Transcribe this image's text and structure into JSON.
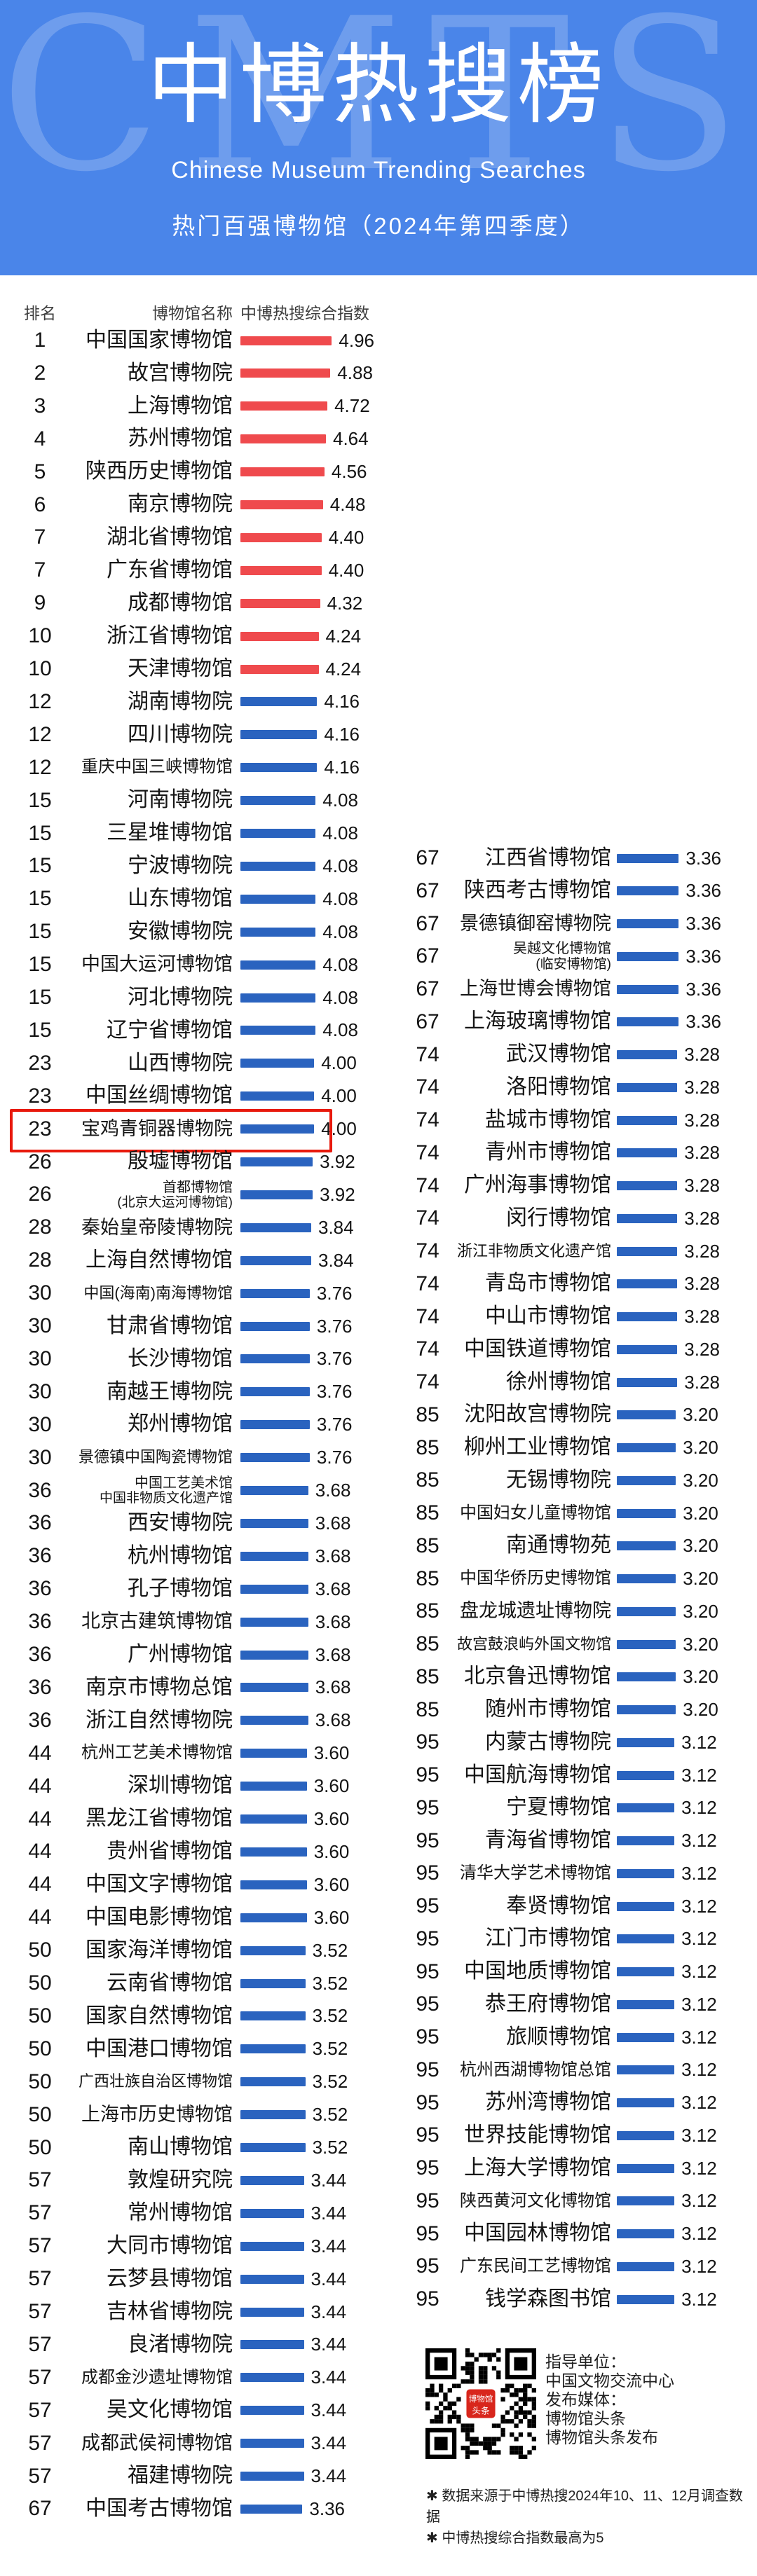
{
  "header": {
    "watermark": "CMTS",
    "title": "中博热搜榜",
    "subtitle_en": "Chinese Museum Trending Searches",
    "subtitle_cn": "热门百强博物馆（2024年第四季度）",
    "bg_color": "#4a85e9"
  },
  "table": {
    "col_rank": "排名",
    "col_name": "博物馆名称",
    "col_index": "中博热搜综合指数"
  },
  "colors": {
    "red_bar": "#ef4a4d",
    "blue_bar": "#2a63bf",
    "highlight": "#e8190c",
    "header_bg": "#4a85e9"
  },
  "chart_data": {
    "type": "bar",
    "title": "中博热搜榜",
    "subtitle": "热门百强博物馆（2024年第四季度）",
    "value_label": "中博热搜综合指数",
    "value_max": 5,
    "legend": "排名前10为红色条，其余为蓝色条；宝鸡青铜器博物院以红框高亮",
    "rows_left": [
      {
        "r": 1,
        "n": "中国国家博物馆",
        "v": "4.96"
      },
      {
        "r": 2,
        "n": "故宫博物院",
        "v": "4.88"
      },
      {
        "r": 3,
        "n": "上海博物馆",
        "v": "4.72"
      },
      {
        "r": 4,
        "n": "苏州博物馆",
        "v": "4.64"
      },
      {
        "r": 5,
        "n": "陕西历史博物馆",
        "v": "4.56"
      },
      {
        "r": 6,
        "n": "南京博物院",
        "v": "4.48"
      },
      {
        "r": 7,
        "n": "湖北省博物馆",
        "v": "4.40"
      },
      {
        "r": 7,
        "n": "广东省博物馆",
        "v": "4.40"
      },
      {
        "r": 9,
        "n": "成都博物馆",
        "v": "4.32"
      },
      {
        "r": 10,
        "n": "浙江省博物馆",
        "v": "4.24"
      },
      {
        "r": 10,
        "n": "天津博物馆",
        "v": "4.24"
      },
      {
        "r": 12,
        "n": "湖南博物院",
        "v": "4.16"
      },
      {
        "r": 12,
        "n": "四川博物院",
        "v": "4.16"
      },
      {
        "r": 12,
        "n": "重庆中国三峡博物馆",
        "v": "4.16"
      },
      {
        "r": 15,
        "n": "河南博物院",
        "v": "4.08"
      },
      {
        "r": 15,
        "n": "三星堆博物馆",
        "v": "4.08"
      },
      {
        "r": 15,
        "n": "宁波博物院",
        "v": "4.08"
      },
      {
        "r": 15,
        "n": "山东博物馆",
        "v": "4.08"
      },
      {
        "r": 15,
        "n": "安徽博物院",
        "v": "4.08"
      },
      {
        "r": 15,
        "n": "中国大运河博物馆",
        "v": "4.08"
      },
      {
        "r": 15,
        "n": "河北博物院",
        "v": "4.08"
      },
      {
        "r": 15,
        "n": "辽宁省博物馆",
        "v": "4.08"
      },
      {
        "r": 23,
        "n": "山西博物院",
        "v": "4.00"
      },
      {
        "r": 23,
        "n": "中国丝绸博物馆",
        "v": "4.00"
      },
      {
        "r": 23,
        "n": "宝鸡青铜器博物院",
        "v": "4.00",
        "hl": true
      },
      {
        "r": 26,
        "n": "殷墟博物馆",
        "v": "3.92"
      },
      {
        "r": 26,
        "n": "首都博物馆",
        "n2": "(北京大运河博物馆)",
        "v": "3.92"
      },
      {
        "r": 28,
        "n": "秦始皇帝陵博物院",
        "v": "3.84"
      },
      {
        "r": 28,
        "n": "上海自然博物馆",
        "v": "3.84"
      },
      {
        "r": 30,
        "n": "中国(海南)南海博物馆",
        "v": "3.76"
      },
      {
        "r": 30,
        "n": "甘肃省博物馆",
        "v": "3.76"
      },
      {
        "r": 30,
        "n": "长沙博物馆",
        "v": "3.76"
      },
      {
        "r": 30,
        "n": "南越王博物院",
        "v": "3.76"
      },
      {
        "r": 30,
        "n": "郑州博物馆",
        "v": "3.76"
      },
      {
        "r": 30,
        "n": "景德镇中国陶瓷博物馆",
        "v": "3.76"
      },
      {
        "r": 36,
        "n": "中国工艺美术馆",
        "n2": "中国非物质文化遗产馆",
        "v": "3.68"
      },
      {
        "r": 36,
        "n": "西安博物院",
        "v": "3.68"
      },
      {
        "r": 36,
        "n": "杭州博物馆",
        "v": "3.68"
      },
      {
        "r": 36,
        "n": "孔子博物馆",
        "v": "3.68"
      },
      {
        "r": 36,
        "n": "北京古建筑博物馆",
        "v": "3.68"
      },
      {
        "r": 36,
        "n": "广州博物馆",
        "v": "3.68"
      },
      {
        "r": 36,
        "n": "南京市博物总馆",
        "v": "3.68"
      },
      {
        "r": 36,
        "n": "浙江自然博物院",
        "v": "3.68"
      },
      {
        "r": 44,
        "n": "杭州工艺美术博物馆",
        "v": "3.60"
      },
      {
        "r": 44,
        "n": "深圳博物馆",
        "v": "3.60"
      },
      {
        "r": 44,
        "n": "黑龙江省博物馆",
        "v": "3.60"
      },
      {
        "r": 44,
        "n": "贵州省博物馆",
        "v": "3.60"
      },
      {
        "r": 44,
        "n": "中国文字博物馆",
        "v": "3.60"
      },
      {
        "r": 44,
        "n": "中国电影博物馆",
        "v": "3.60"
      },
      {
        "r": 50,
        "n": "国家海洋博物馆",
        "v": "3.52"
      },
      {
        "r": 50,
        "n": "云南省博物馆",
        "v": "3.52"
      },
      {
        "r": 50,
        "n": "国家自然博物馆",
        "v": "3.52"
      },
      {
        "r": 50,
        "n": "中国港口博物馆",
        "v": "3.52"
      },
      {
        "r": 50,
        "n": "广西壮族自治区博物馆",
        "v": "3.52"
      },
      {
        "r": 50,
        "n": "上海市历史博物馆",
        "v": "3.52"
      },
      {
        "r": 50,
        "n": "南山博物馆",
        "v": "3.52"
      },
      {
        "r": 57,
        "n": "敦煌研究院",
        "v": "3.44"
      },
      {
        "r": 57,
        "n": "常州博物馆",
        "v": "3.44"
      },
      {
        "r": 57,
        "n": "大同市博物馆",
        "v": "3.44"
      },
      {
        "r": 57,
        "n": "云梦县博物馆",
        "v": "3.44"
      },
      {
        "r": 57,
        "n": "吉林省博物院",
        "v": "3.44"
      },
      {
        "r": 57,
        "n": "良渚博物院",
        "v": "3.44"
      },
      {
        "r": 57,
        "n": "成都金沙遗址博物馆",
        "v": "3.44"
      },
      {
        "r": 57,
        "n": "吴文化博物馆",
        "v": "3.44"
      },
      {
        "r": 57,
        "n": "成都武侯祠博物馆",
        "v": "3.44"
      },
      {
        "r": 57,
        "n": "福建博物院",
        "v": "3.44"
      },
      {
        "r": 67,
        "n": "中国考古博物馆",
        "v": "3.36"
      }
    ],
    "rows_right": [
      {
        "r": 67,
        "n": "江西省博物馆",
        "v": "3.36"
      },
      {
        "r": 67,
        "n": "陕西考古博物馆",
        "v": "3.36"
      },
      {
        "r": 67,
        "n": "景德镇御窑博物院",
        "v": "3.36"
      },
      {
        "r": 67,
        "n": "吴越文化博物馆",
        "n2": "(临安博物馆)",
        "v": "3.36"
      },
      {
        "r": 67,
        "n": "上海世博会博物馆",
        "v": "3.36"
      },
      {
        "r": 67,
        "n": "上海玻璃博物馆",
        "v": "3.36"
      },
      {
        "r": 74,
        "n": "武汉博物馆",
        "v": "3.28"
      },
      {
        "r": 74,
        "n": "洛阳博物馆",
        "v": "3.28"
      },
      {
        "r": 74,
        "n": "盐城市博物馆",
        "v": "3.28"
      },
      {
        "r": 74,
        "n": "青州市博物馆",
        "v": "3.28"
      },
      {
        "r": 74,
        "n": "广州海事博物馆",
        "v": "3.28"
      },
      {
        "r": 74,
        "n": "闵行博物馆",
        "v": "3.28"
      },
      {
        "r": 74,
        "n": "浙江非物质文化遗产馆",
        "v": "3.28"
      },
      {
        "r": 74,
        "n": "青岛市博物馆",
        "v": "3.28"
      },
      {
        "r": 74,
        "n": "中山市博物馆",
        "v": "3.28"
      },
      {
        "r": 74,
        "n": "中国铁道博物馆",
        "v": "3.28"
      },
      {
        "r": 74,
        "n": "徐州博物馆",
        "v": "3.28"
      },
      {
        "r": 85,
        "n": "沈阳故宫博物院",
        "v": "3.20"
      },
      {
        "r": 85,
        "n": "柳州工业博物馆",
        "v": "3.20"
      },
      {
        "r": 85,
        "n": "无锡博物院",
        "v": "3.20"
      },
      {
        "r": 85,
        "n": "中国妇女儿童博物馆",
        "v": "3.20"
      },
      {
        "r": 85,
        "n": "南通博物苑",
        "v": "3.20"
      },
      {
        "r": 85,
        "n": "中国华侨历史博物馆",
        "v": "3.20"
      },
      {
        "r": 85,
        "n": "盘龙城遗址博物院",
        "v": "3.20"
      },
      {
        "r": 85,
        "n": "故宫鼓浪屿外国文物馆",
        "v": "3.20"
      },
      {
        "r": 85,
        "n": "北京鲁迅博物馆",
        "v": "3.20"
      },
      {
        "r": 85,
        "n": "随州市博物馆",
        "v": "3.20"
      },
      {
        "r": 95,
        "n": "内蒙古博物院",
        "v": "3.12"
      },
      {
        "r": 95,
        "n": "中国航海博物馆",
        "v": "3.12"
      },
      {
        "r": 95,
        "n": "宁夏博物馆",
        "v": "3.12"
      },
      {
        "r": 95,
        "n": "青海省博物馆",
        "v": "3.12"
      },
      {
        "r": 95,
        "n": "清华大学艺术博物馆",
        "v": "3.12"
      },
      {
        "r": 95,
        "n": "奉贤博物馆",
        "v": "3.12"
      },
      {
        "r": 95,
        "n": "江门市博物馆",
        "v": "3.12"
      },
      {
        "r": 95,
        "n": "中国地质博物馆",
        "v": "3.12"
      },
      {
        "r": 95,
        "n": "恭王府博物馆",
        "v": "3.12"
      },
      {
        "r": 95,
        "n": "旅顺博物馆",
        "v": "3.12"
      },
      {
        "r": 95,
        "n": "杭州西湖博物馆总馆",
        "v": "3.12"
      },
      {
        "r": 95,
        "n": "苏州湾博物馆",
        "v": "3.12"
      },
      {
        "r": 95,
        "n": "世界技能博物馆",
        "v": "3.12"
      },
      {
        "r": 95,
        "n": "上海大学博物馆",
        "v": "3.12"
      },
      {
        "r": 95,
        "n": "陕西黄河文化博物馆",
        "v": "3.12"
      },
      {
        "r": 95,
        "n": "中国园林博物馆",
        "v": "3.12"
      },
      {
        "r": 95,
        "n": "广东民间工艺博物馆",
        "v": "3.12"
      },
      {
        "r": 95,
        "n": "钱学森图书馆",
        "v": "3.12"
      }
    ]
  },
  "footer": {
    "credits_lines": [
      "指导单位：",
      "中国文物交流中心",
      "发布媒体：",
      "博物馆头条",
      "博物馆头条发布"
    ],
    "qr_logo_line1": "博物馆",
    "qr_logo_line2": "头条",
    "notes": [
      "✱ 数据来源于中博热搜2024年10、11、12月调查数据",
      "✱ 中博热搜综合指数最高为5"
    ]
  }
}
